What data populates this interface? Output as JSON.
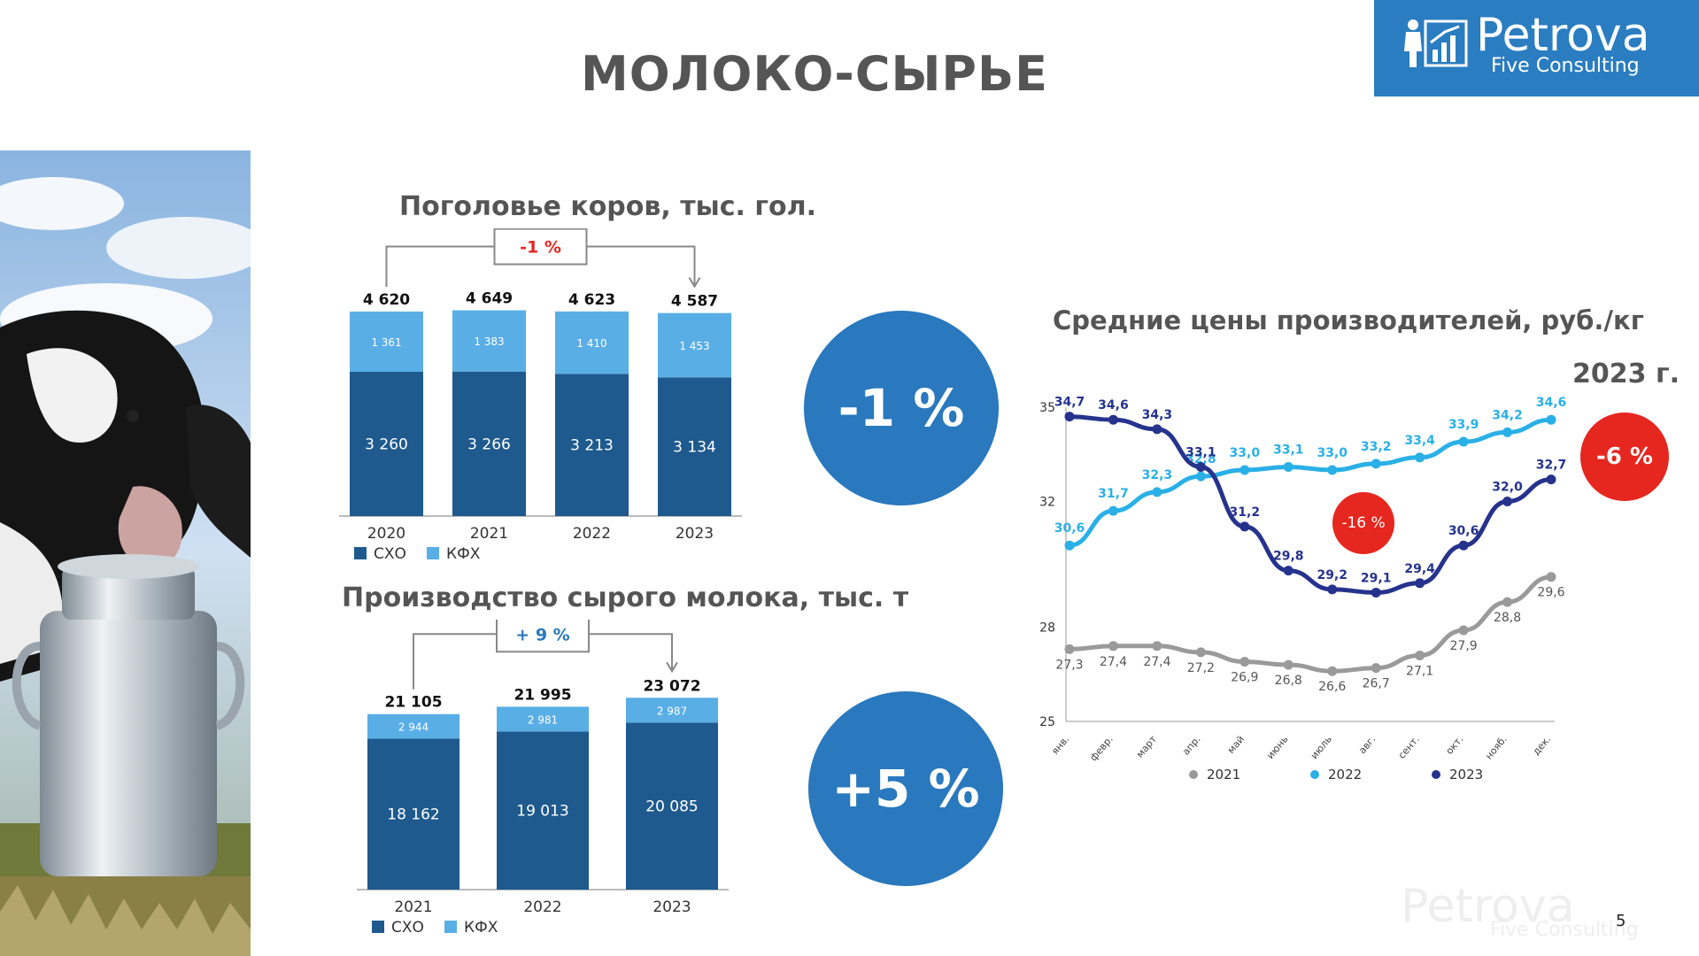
{
  "page": {
    "title": "МОЛОКО-СЫРЬЕ",
    "page_number": "5",
    "logo": {
      "name": "Petrova",
      "sub": "Five Consulting"
    },
    "watermark": {
      "name": "Petrova",
      "sub": "Five Consulting"
    }
  },
  "colors": {
    "dark_blue": "#1e5a8e",
    "light_blue": "#5aaee6",
    "accent_blue": "#2a78bd",
    "red": "#e5271f",
    "gray": "#9a9a9a",
    "navy": "#26338d",
    "cyan": "#2ab0e6"
  },
  "bubbles": {
    "cows_change": "-1 %",
    "milk_change": "+5 %",
    "price_2023_change": "-6 %",
    "price_summer_change": "-16 %"
  },
  "labels": {
    "price_year": "2023 г."
  },
  "chart_data": [
    {
      "type": "bar",
      "title": "Поголовье коров, тыс. гол.",
      "categories": [
        "2020",
        "2021",
        "2022",
        "2023"
      ],
      "series": [
        {
          "name": "СХО",
          "values": [
            3260,
            3266,
            3213,
            3134
          ],
          "labels": [
            "3 260",
            "3 266",
            "3 213",
            "3 134"
          ]
        },
        {
          "name": "КФХ",
          "values": [
            1361,
            1383,
            1410,
            1453
          ],
          "labels": [
            "1 361",
            "1 383",
            "1 410",
            "1 453"
          ]
        }
      ],
      "totals": [
        "4 620",
        "4 649",
        "4 623",
        "4 587"
      ],
      "bracket_label": "-1 %",
      "stacked": true,
      "ylim": [
        0,
        4700
      ]
    },
    {
      "type": "bar",
      "title": "Производство сырого молока, тыс. т",
      "categories": [
        "2021",
        "2022",
        "2023"
      ],
      "series": [
        {
          "name": "СХО",
          "values": [
            18162,
            19013,
            20085
          ],
          "labels": [
            "18 162",
            "19 013",
            "20 085"
          ]
        },
        {
          "name": "КФХ",
          "values": [
            2944,
            2981,
            2987
          ],
          "labels": [
            "2 944",
            "2 981",
            "2 987"
          ]
        }
      ],
      "totals": [
        "21 105",
        "21 995",
        "23 072"
      ],
      "bracket_label": "+ 9 %",
      "stacked": true,
      "ylim": [
        0,
        23100
      ]
    },
    {
      "type": "line",
      "title": "Средние цены производителей, руб./кг",
      "categories": [
        "янв.",
        "февр.",
        "март",
        "апр.",
        "май",
        "июнь",
        "июль",
        "авг.",
        "сент.",
        "окт.",
        "нояб.",
        "дек."
      ],
      "ylim": [
        25,
        35
      ],
      "yticks": [
        "25",
        "28",
        "32",
        "35"
      ],
      "legend_position": "bottom",
      "series": [
        {
          "name": "2021",
          "values": [
            27.3,
            27.4,
            27.4,
            27.2,
            26.9,
            26.8,
            26.6,
            26.7,
            27.1,
            27.9,
            28.8,
            29.6
          ],
          "labels": [
            "27,3",
            "27,4",
            "27,4",
            "27,2",
            "26,9",
            "26,8",
            "26,6",
            "26,7",
            "27,1",
            "27,9",
            "28,8",
            "29,6"
          ]
        },
        {
          "name": "2022",
          "values": [
            30.6,
            31.7,
            32.3,
            32.8,
            33.0,
            33.1,
            33.0,
            33.2,
            33.4,
            33.9,
            34.2,
            34.6
          ],
          "labels": [
            "30,6",
            "31,7",
            "32,3",
            "32,8",
            "33,0",
            "33,1",
            "33,0",
            "33,2",
            "33,4",
            "33,9",
            "34,2",
            "34,6"
          ]
        },
        {
          "name": "2023",
          "values": [
            34.7,
            34.6,
            34.3,
            33.1,
            31.2,
            29.8,
            29.2,
            29.1,
            29.4,
            30.6,
            32.0,
            32.7
          ],
          "labels": [
            "34,7",
            "34,6",
            "34,3",
            "33,1",
            "31,2",
            "29,8",
            "29,2",
            "29,1",
            "29,4",
            "30,6",
            "32,0",
            "32,7"
          ]
        }
      ]
    }
  ]
}
